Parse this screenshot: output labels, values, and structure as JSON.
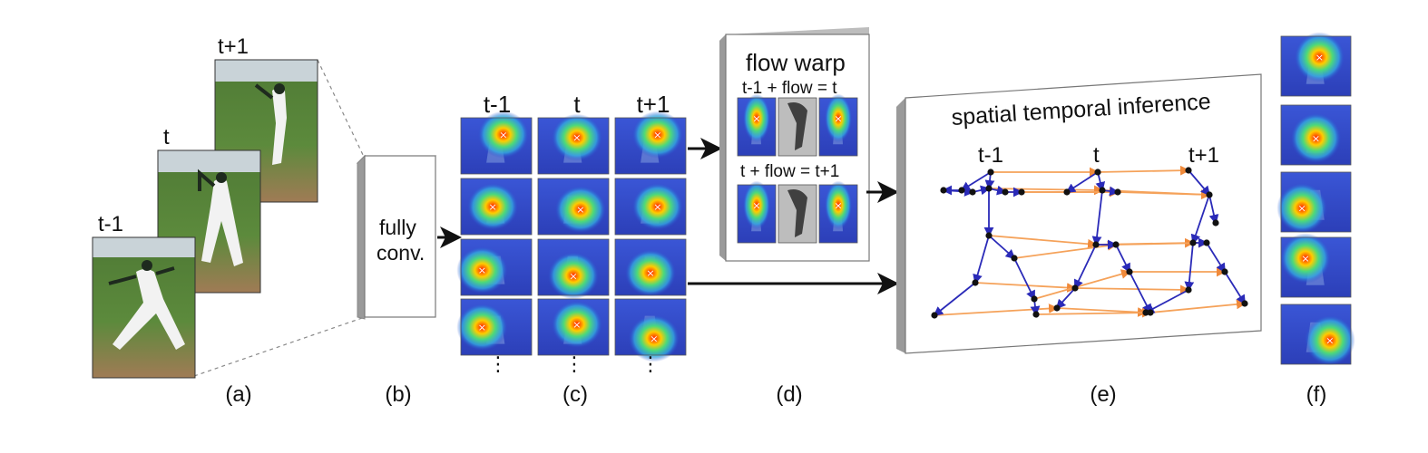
{
  "frames": {
    "labels": [
      "t-1",
      "t",
      "t+1"
    ]
  },
  "fcn": {
    "line1": "fully",
    "line2": "conv."
  },
  "heatmaps": {
    "col_labels": [
      "t-1",
      "t",
      "t+1"
    ],
    "ellipsis": "⋮"
  },
  "flow": {
    "title": "flow warp",
    "eq1": "t-1 + flow = t",
    "eq2": "t + flow = t+1"
  },
  "inference": {
    "title": "spatial temporal inference",
    "labels": [
      "t-1",
      "t",
      "t+1"
    ]
  },
  "captions": [
    "(a)",
    "(b)",
    "(c)",
    "(d)",
    "(e)",
    "(f)"
  ],
  "colors": {
    "spatial_edge": "#2a2ab8",
    "temporal_edge": "#f5a25a",
    "heat_hot": "#ff2a00",
    "heat_cold": "#1a3ad8"
  }
}
